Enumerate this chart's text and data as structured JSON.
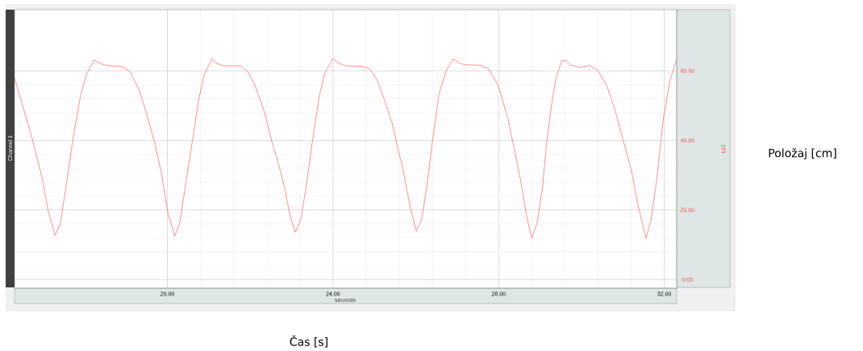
{
  "chart_data": {
    "type": "line",
    "xlabel": "seconds",
    "ylabel": "cm",
    "annotations": [
      "Channel 1",
      "Čas [s]",
      "Položaj [cm]"
    ],
    "xlim": [
      16.31,
      32.3
    ],
    "ylim": [
      -2.5,
      77.6
    ],
    "xticks": [
      {
        "value": 20,
        "label": "20.00"
      },
      {
        "value": 24,
        "label": "24.00"
      },
      {
        "value": 28,
        "label": "28.00"
      },
      {
        "value": 32,
        "label": "32.00"
      }
    ],
    "yticks": [
      {
        "value": 0,
        "label": "-0.00"
      },
      {
        "value": 20,
        "label": "20.00"
      },
      {
        "value": 40,
        "label": "40.00"
      },
      {
        "value": 60,
        "label": "60.00"
      }
    ],
    "grid": true,
    "series": [
      {
        "color": "#ff6161",
        "x": [
          16.31,
          16.48,
          16.74,
          16.97,
          17.13,
          17.29,
          17.42,
          17.55,
          17.71,
          17.9,
          18.04,
          18.23,
          18.42,
          18.62,
          18.91,
          19.11,
          19.33,
          19.49,
          19.69,
          19.85,
          20.01,
          20.18,
          20.3,
          20.43,
          20.6,
          20.76,
          20.89,
          21.08,
          21.18,
          21.37,
          21.76,
          21.93,
          22.12,
          22.35,
          22.51,
          22.7,
          22.83,
          22.96,
          23.09,
          23.22,
          23.35,
          23.51,
          23.68,
          23.81,
          24.0,
          24.13,
          24.32,
          24.71,
          24.88,
          25.07,
          25.26,
          25.43,
          25.56,
          25.69,
          25.85,
          26.01,
          26.14,
          26.27,
          26.4,
          26.56,
          26.74,
          26.9,
          27.05,
          27.21,
          27.57,
          27.76,
          27.99,
          28.22,
          28.41,
          28.54,
          28.67,
          28.8,
          28.93,
          29.06,
          29.16,
          29.29,
          29.39,
          29.53,
          29.64,
          29.74,
          29.97,
          30.21,
          30.39,
          30.61,
          30.81,
          31.0,
          31.2,
          31.36,
          31.56,
          31.68,
          31.81,
          31.98,
          32.14,
          32.29
        ],
        "values": [
          57.9,
          51.1,
          40.3,
          29.5,
          19.4,
          12.7,
          16.3,
          26.4,
          39.5,
          52.7,
          58.9,
          63.1,
          61.9,
          61.4,
          61.3,
          59.6,
          54.2,
          48.0,
          39.5,
          31.0,
          19.4,
          12.5,
          16.3,
          26.4,
          39.5,
          51.9,
          58.9,
          63.5,
          62.2,
          61.4,
          61.4,
          60.0,
          55.8,
          48.0,
          40.3,
          32.6,
          26.4,
          18.6,
          13.6,
          17.1,
          26.4,
          40.3,
          53.4,
          59.6,
          63.5,
          62.2,
          61.4,
          61.3,
          60.6,
          57.3,
          51.1,
          44.9,
          38.0,
          31.8,
          21.7,
          13.9,
          17.1,
          27.1,
          39.5,
          53.4,
          60.2,
          63.5,
          62.2,
          61.7,
          61.6,
          60.6,
          55.8,
          46.5,
          35.7,
          27.9,
          18.6,
          11.9,
          16.3,
          26.4,
          39.5,
          51.1,
          58.1,
          63.0,
          62.9,
          61.6,
          61.0,
          61.5,
          60.2,
          55.8,
          48.8,
          40.3,
          31.8,
          21.7,
          11.9,
          17.1,
          27.9,
          46.5,
          57.3,
          62.9
        ]
      }
    ]
  }
}
